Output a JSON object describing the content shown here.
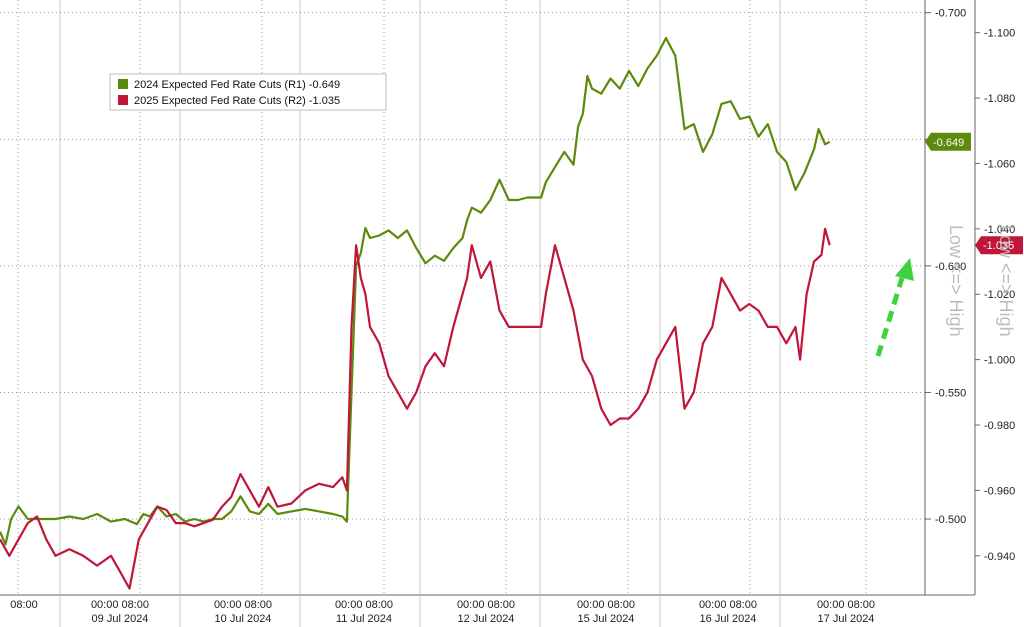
{
  "chart_data": {
    "type": "line",
    "x_labels": [
      {
        "top": "08:00",
        "bottom": ""
      },
      {
        "top": "00:00  08:00",
        "bottom": "09 Jul 2024"
      },
      {
        "top": "00:00  08:00",
        "bottom": "10 Jul 2024"
      },
      {
        "top": "00:00  08:00",
        "bottom": "11 Jul 2024"
      },
      {
        "top": "00:00  08:00",
        "bottom": "12 Jul 2024"
      },
      {
        "top": "00:00  08:00",
        "bottom": "15 Jul 2024"
      },
      {
        "top": "00:00  08:00",
        "bottom": "16 Jul 2024"
      },
      {
        "top": "00:00  08:00",
        "bottom": "17 Jul 2024"
      }
    ],
    "y_left": {
      "ticks": [
        "-0.500",
        "-0.550",
        "-0.600",
        "-0.650",
        "-0.700"
      ],
      "range": [
        -0.47,
        -0.705
      ]
    },
    "y_right": {
      "ticks": [
        "-0.940",
        "-0.960",
        "-0.980",
        "-1.000",
        "-1.020",
        "-1.040",
        "-1.060",
        "-1.080",
        "-1.100"
      ],
      "range": [
        -0.928,
        -1.11
      ]
    },
    "axis_note": "Low <=> High",
    "series": [
      {
        "name": "2024 Expected Fed Rate Cuts (R1)",
        "legend_value": "-0.649",
        "last_label": "-0.649",
        "color": "#5b8a0c",
        "axis": "left",
        "points": [
          [
            0,
            -0.495
          ],
          [
            0.006,
            -0.49
          ],
          [
            0.012,
            -0.5
          ],
          [
            0.02,
            -0.505
          ],
          [
            0.03,
            -0.5
          ],
          [
            0.045,
            -0.5
          ],
          [
            0.06,
            -0.5
          ],
          [
            0.075,
            -0.501
          ],
          [
            0.09,
            -0.5
          ],
          [
            0.105,
            -0.502
          ],
          [
            0.12,
            -0.499
          ],
          [
            0.135,
            -0.5
          ],
          [
            0.148,
            -0.498
          ],
          [
            0.155,
            -0.502
          ],
          [
            0.162,
            -0.501
          ],
          [
            0.17,
            -0.505
          ],
          [
            0.18,
            -0.501
          ],
          [
            0.19,
            -0.502
          ],
          [
            0.2,
            -0.499
          ],
          [
            0.21,
            -0.5
          ],
          [
            0.22,
            -0.499
          ],
          [
            0.23,
            -0.5
          ],
          [
            0.24,
            -0.5
          ],
          [
            0.25,
            -0.503
          ],
          [
            0.26,
            -0.509
          ],
          [
            0.27,
            -0.503
          ],
          [
            0.28,
            -0.502
          ],
          [
            0.29,
            -0.506
          ],
          [
            0.3,
            -0.502
          ],
          [
            0.315,
            -0.503
          ],
          [
            0.33,
            -0.504
          ],
          [
            0.345,
            -0.503
          ],
          [
            0.36,
            -0.502
          ],
          [
            0.37,
            -0.501
          ],
          [
            0.375,
            -0.499
          ],
          [
            0.38,
            -0.55
          ],
          [
            0.385,
            -0.6
          ],
          [
            0.39,
            -0.605
          ],
          [
            0.395,
            -0.615
          ],
          [
            0.4,
            -0.611
          ],
          [
            0.41,
            -0.612
          ],
          [
            0.42,
            -0.614
          ],
          [
            0.43,
            -0.611
          ],
          [
            0.44,
            -0.614
          ],
          [
            0.45,
            -0.607
          ],
          [
            0.46,
            -0.601
          ],
          [
            0.47,
            -0.604
          ],
          [
            0.48,
            -0.602
          ],
          [
            0.49,
            -0.607
          ],
          [
            0.5,
            -0.611
          ],
          [
            0.505,
            -0.618
          ],
          [
            0.51,
            -0.623
          ],
          [
            0.52,
            -0.621
          ],
          [
            0.53,
            -0.626
          ],
          [
            0.54,
            -0.634
          ],
          [
            0.55,
            -0.626
          ],
          [
            0.56,
            -0.626
          ],
          [
            0.57,
            -0.627
          ],
          [
            0.585,
            -0.627
          ],
          [
            0.59,
            -0.633
          ],
          [
            0.6,
            -0.639
          ],
          [
            0.61,
            -0.645
          ],
          [
            0.62,
            -0.64
          ],
          [
            0.625,
            -0.655
          ],
          [
            0.63,
            -0.66
          ],
          [
            0.635,
            -0.675
          ],
          [
            0.64,
            -0.67
          ],
          [
            0.65,
            -0.668
          ],
          [
            0.66,
            -0.674
          ],
          [
            0.67,
            -0.67
          ],
          [
            0.68,
            -0.677
          ],
          [
            0.69,
            -0.671
          ],
          [
            0.7,
            -0.678
          ],
          [
            0.71,
            -0.683
          ],
          [
            0.72,
            -0.69
          ],
          [
            0.73,
            -0.683
          ],
          [
            0.74,
            -0.654
          ],
          [
            0.75,
            -0.656
          ],
          [
            0.76,
            -0.645
          ],
          [
            0.77,
            -0.652
          ],
          [
            0.78,
            -0.664
          ],
          [
            0.79,
            -0.665
          ],
          [
            0.8,
            -0.658
          ],
          [
            0.81,
            -0.659
          ],
          [
            0.82,
            -0.651
          ],
          [
            0.83,
            -0.656
          ],
          [
            0.84,
            -0.645
          ],
          [
            0.85,
            -0.641
          ],
          [
            0.86,
            -0.63
          ],
          [
            0.87,
            -0.637
          ],
          [
            0.88,
            -0.646
          ],
          [
            0.885,
            -0.654
          ],
          [
            0.892,
            -0.648
          ],
          [
            0.897,
            -0.649
          ]
        ]
      },
      {
        "name": "2025 Expected Fed Rate Cuts (R2)",
        "legend_value": "-1.035",
        "last_label": "-1.035",
        "color": "#c0163a",
        "axis": "right",
        "points": [
          [
            0,
            -0.945
          ],
          [
            0.01,
            -0.94
          ],
          [
            0.02,
            -0.945
          ],
          [
            0.03,
            -0.95
          ],
          [
            0.04,
            -0.952
          ],
          [
            0.05,
            -0.945
          ],
          [
            0.06,
            -0.94
          ],
          [
            0.075,
            -0.942
          ],
          [
            0.09,
            -0.94
          ],
          [
            0.105,
            -0.937
          ],
          [
            0.12,
            -0.94
          ],
          [
            0.13,
            -0.935
          ],
          [
            0.14,
            -0.93
          ],
          [
            0.15,
            -0.945
          ],
          [
            0.16,
            -0.95
          ],
          [
            0.17,
            -0.955
          ],
          [
            0.18,
            -0.954
          ],
          [
            0.19,
            -0.95
          ],
          [
            0.2,
            -0.95
          ],
          [
            0.21,
            -0.949
          ],
          [
            0.22,
            -0.95
          ],
          [
            0.23,
            -0.951
          ],
          [
            0.24,
            -0.955
          ],
          [
            0.25,
            -0.958
          ],
          [
            0.26,
            -0.965
          ],
          [
            0.27,
            -0.96
          ],
          [
            0.28,
            -0.955
          ],
          [
            0.29,
            -0.961
          ],
          [
            0.3,
            -0.955
          ],
          [
            0.315,
            -0.956
          ],
          [
            0.33,
            -0.96
          ],
          [
            0.345,
            -0.962
          ],
          [
            0.36,
            -0.961
          ],
          [
            0.37,
            -0.964
          ],
          [
            0.375,
            -0.96
          ],
          [
            0.38,
            -1.01
          ],
          [
            0.385,
            -1.035
          ],
          [
            0.39,
            -1.025
          ],
          [
            0.395,
            -1.02
          ],
          [
            0.4,
            -1.01
          ],
          [
            0.41,
            -1.005
          ],
          [
            0.42,
            -0.995
          ],
          [
            0.43,
            -0.99
          ],
          [
            0.44,
            -0.985
          ],
          [
            0.45,
            -0.99
          ],
          [
            0.46,
            -0.998
          ],
          [
            0.47,
            -1.002
          ],
          [
            0.48,
            -0.998
          ],
          [
            0.49,
            -1.01
          ],
          [
            0.5,
            -1.02
          ],
          [
            0.505,
            -1.025
          ],
          [
            0.51,
            -1.035
          ],
          [
            0.52,
            -1.025
          ],
          [
            0.53,
            -1.03
          ],
          [
            0.54,
            -1.015
          ],
          [
            0.55,
            -1.01
          ],
          [
            0.56,
            -1.01
          ],
          [
            0.57,
            -1.01
          ],
          [
            0.585,
            -1.01
          ],
          [
            0.59,
            -1.02
          ],
          [
            0.6,
            -1.035
          ],
          [
            0.61,
            -1.025
          ],
          [
            0.62,
            -1.015
          ],
          [
            0.63,
            -1.0
          ],
          [
            0.64,
            -0.995
          ],
          [
            0.65,
            -0.985
          ],
          [
            0.66,
            -0.98
          ],
          [
            0.67,
            -0.982
          ],
          [
            0.68,
            -0.982
          ],
          [
            0.69,
            -0.985
          ],
          [
            0.7,
            -0.99
          ],
          [
            0.71,
            -1.0
          ],
          [
            0.72,
            -1.005
          ],
          [
            0.73,
            -1.01
          ],
          [
            0.74,
            -0.985
          ],
          [
            0.75,
            -0.99
          ],
          [
            0.76,
            -1.005
          ],
          [
            0.77,
            -1.01
          ],
          [
            0.78,
            -1.025
          ],
          [
            0.79,
            -1.02
          ],
          [
            0.8,
            -1.015
          ],
          [
            0.81,
            -1.017
          ],
          [
            0.82,
            -1.015
          ],
          [
            0.83,
            -1.01
          ],
          [
            0.84,
            -1.01
          ],
          [
            0.85,
            -1.005
          ],
          [
            0.86,
            -1.01
          ],
          [
            0.865,
            -1.0
          ],
          [
            0.872,
            -1.02
          ],
          [
            0.88,
            -1.03
          ],
          [
            0.888,
            -1.032
          ],
          [
            0.892,
            -1.04
          ],
          [
            0.897,
            -1.035
          ]
        ]
      }
    ],
    "legend_position": "top-left",
    "grid": true,
    "annotation": "green dashed arrow pointing up-right near latest values"
  }
}
